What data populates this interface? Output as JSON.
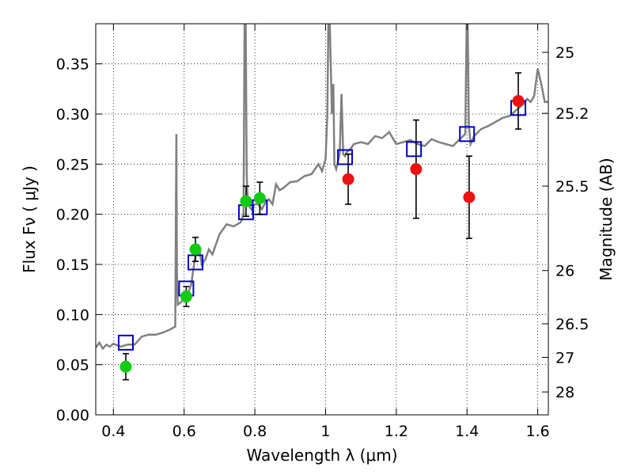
{
  "chart_data": {
    "type": "scatter",
    "xlabel": "Wavelength  λ (μm)",
    "ylabel": "Flux  Fν  ( μJy )",
    "y2label": "Magnitude (AB)",
    "xlim": [
      0.35,
      1.63
    ],
    "ylim": [
      0.0,
      0.39
    ],
    "grid": true,
    "x_ticks": [
      0.4,
      0.6,
      0.8,
      1.0,
      1.2,
      1.4,
      1.6
    ],
    "x_tick_labels": [
      "0.4",
      "0.6",
      "0.8",
      "1",
      "1.2",
      "1.4",
      "1.6"
    ],
    "y_ticks": [
      0.0,
      0.05,
      0.1,
      0.15,
      0.2,
      0.25,
      0.3,
      0.35
    ],
    "y_tick_labels": [
      "0.00",
      "0.05",
      "0.10",
      "0.15",
      "0.20",
      "0.25",
      "0.30",
      "0.35"
    ],
    "y2_ticks": [
      {
        "label": "25",
        "flux": 0.3615
      },
      {
        "label": "25.2",
        "flux": 0.3007
      },
      {
        "label": "25.5",
        "flux": 0.2281
      },
      {
        "label": "26",
        "flux": 0.1439
      },
      {
        "label": "26.5",
        "flux": 0.0908
      },
      {
        "label": "27",
        "flux": 0.0573
      },
      {
        "label": "28",
        "flux": 0.0228
      }
    ],
    "model_spectrum": {
      "color": "#808080",
      "x": [
        0.35,
        0.36,
        0.37,
        0.38,
        0.39,
        0.4,
        0.42,
        0.44,
        0.46,
        0.48,
        0.5,
        0.52,
        0.54,
        0.56,
        0.575,
        0.578,
        0.5795,
        0.582,
        0.59,
        0.6,
        0.61,
        0.62,
        0.63,
        0.64,
        0.65,
        0.66,
        0.67,
        0.68,
        0.69,
        0.7,
        0.72,
        0.74,
        0.76,
        0.768,
        0.771,
        0.774,
        0.777,
        0.78,
        0.79,
        0.8,
        0.81,
        0.82,
        0.83,
        0.84,
        0.85,
        0.86,
        0.87,
        0.88,
        0.9,
        0.92,
        0.94,
        0.96,
        0.98,
        0.99,
        1.0,
        1.005,
        1.008,
        1.012,
        1.018,
        1.022,
        1.025,
        1.03,
        1.04,
        1.045,
        1.05,
        1.055,
        1.06,
        1.07,
        1.08,
        1.1,
        1.12,
        1.14,
        1.16,
        1.18,
        1.2,
        1.22,
        1.24,
        1.26,
        1.28,
        1.3,
        1.32,
        1.34,
        1.36,
        1.38,
        1.395,
        1.399,
        1.402,
        1.405,
        1.41,
        1.42,
        1.44,
        1.46,
        1.48,
        1.5,
        1.52,
        1.54,
        1.56,
        1.57,
        1.58,
        1.59,
        1.6,
        1.61,
        1.62,
        1.63
      ],
      "y": [
        0.067,
        0.072,
        0.066,
        0.07,
        0.068,
        0.071,
        0.068,
        0.07,
        0.07,
        0.078,
        0.08,
        0.08,
        0.082,
        0.085,
        0.088,
        0.28,
        0.14,
        0.11,
        0.112,
        0.117,
        0.12,
        0.13,
        0.155,
        0.17,
        0.15,
        0.155,
        0.165,
        0.16,
        0.17,
        0.18,
        0.19,
        0.188,
        0.192,
        0.2,
        0.39,
        0.39,
        0.24,
        0.21,
        0.205,
        0.21,
        0.21,
        0.205,
        0.212,
        0.215,
        0.21,
        0.23,
        0.224,
        0.226,
        0.232,
        0.233,
        0.238,
        0.24,
        0.25,
        0.243,
        0.255,
        0.3,
        0.39,
        0.39,
        0.3,
        0.33,
        0.25,
        0.245,
        0.26,
        0.32,
        0.26,
        0.258,
        0.262,
        0.265,
        0.27,
        0.272,
        0.27,
        0.278,
        0.276,
        0.282,
        0.27,
        0.272,
        0.274,
        0.27,
        0.268,
        0.275,
        0.272,
        0.27,
        0.268,
        0.275,
        0.28,
        0.39,
        0.39,
        0.29,
        0.27,
        0.278,
        0.285,
        0.288,
        0.292,
        0.296,
        0.298,
        0.304,
        0.31,
        0.315,
        0.312,
        0.318,
        0.345,
        0.33,
        0.312,
        0.312
      ]
    },
    "model_photometry": {
      "marker": "open-square",
      "color": "#0000cc",
      "x": [
        0.435,
        0.606,
        0.632,
        0.775,
        0.814,
        1.055,
        1.25,
        1.4,
        1.545
      ],
      "y": [
        0.072,
        0.126,
        0.152,
        0.202,
        0.207,
        0.257,
        0.265,
        0.28,
        0.306
      ]
    },
    "observed_detections": {
      "marker": "filled-circle",
      "color": "#11cc11",
      "x": [
        0.435,
        0.606,
        0.632,
        0.775,
        0.814
      ],
      "y": [
        0.048,
        0.118,
        0.165,
        0.213,
        0.216
      ],
      "err": [
        0.013,
        0.01,
        0.012,
        0.015,
        0.016
      ]
    },
    "observed_nir": {
      "marker": "filled-circle",
      "color": "#ee1111",
      "x": [
        1.064,
        1.256,
        1.406,
        1.545
      ],
      "y": [
        0.235,
        0.245,
        0.217,
        0.313
      ],
      "err": [
        0.025,
        0.049,
        0.041,
        0.028
      ]
    }
  }
}
